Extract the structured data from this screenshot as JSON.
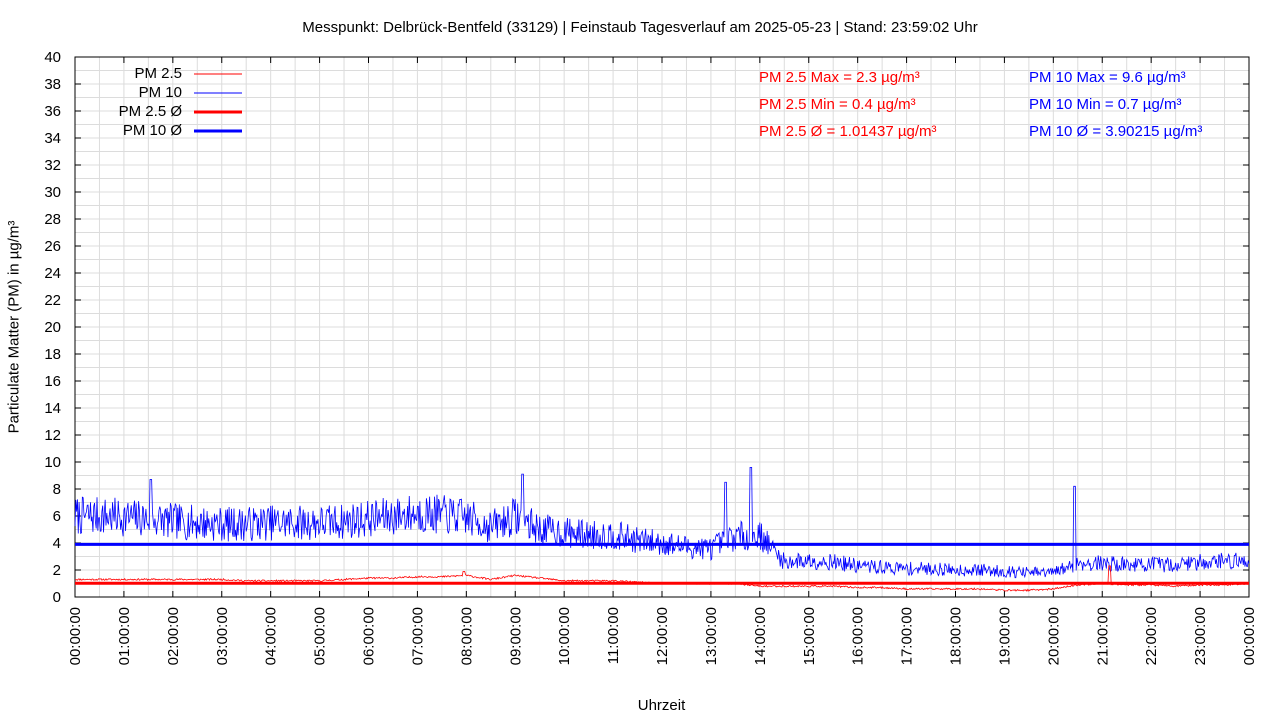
{
  "title": "Messpunkt: Delbrück-Bentfeld (33129) | Feinstaub Tagesverlauf am 2025-05-23 | Stand: 23:59:02 Uhr",
  "colors": {
    "pm25": "#ff0000",
    "pm10": "#0000ff",
    "grid": "#dcdcdc"
  },
  "stats": {
    "pm25_max": "PM 2.5 Max = 2.3 µg/m³",
    "pm25_min": "PM 2.5 Min = 0.4 µg/m³",
    "pm25_avg": "PM 2.5 Ø = 1.01437 µg/m³",
    "pm10_max": "PM 10 Max = 9.6 µg/m³",
    "pm10_min": "PM 10 Min = 0.7 µg/m³",
    "pm10_avg": "PM 10 Ø = 3.90215 µg/m³"
  },
  "chart_data": {
    "type": "line",
    "title": "Messpunkt: Delbrück-Bentfeld (33129) | Feinstaub Tagesverlauf am 2025-05-23 | Stand: 23:59:02 Uhr",
    "xlabel": "Uhrzeit",
    "ylabel": "Particulate Matter (PM) in µg/m³",
    "xlim": [
      "00:00:00",
      "24:00:00"
    ],
    "ylim": [
      0,
      40
    ],
    "grid": true,
    "legend_position": "top-left",
    "x_ticks": [
      "00:00:00",
      "01:00:00",
      "02:00:00",
      "03:00:00",
      "04:00:00",
      "05:00:00",
      "06:00:00",
      "07:00:00",
      "08:00:00",
      "09:00:00",
      "10:00:00",
      "11:00:00",
      "12:00:00",
      "13:00:00",
      "14:00:00",
      "15:00:00",
      "16:00:00",
      "17:00:00",
      "18:00:00",
      "19:00:00",
      "20:00:00",
      "21:00:00",
      "22:00:00",
      "23:00:00",
      "00:00:00"
    ],
    "y_ticks": [
      "0",
      "2",
      "4",
      "6",
      "8",
      "10",
      "12",
      "14",
      "16",
      "18",
      "20",
      "22",
      "24",
      "26",
      "28",
      "30",
      "32",
      "34",
      "36",
      "38",
      "40"
    ],
    "x_hours": [
      0,
      0.5,
      1,
      1.5,
      2,
      2.5,
      3,
      3.5,
      4,
      4.5,
      5,
      5.5,
      6,
      6.5,
      7,
      7.5,
      8,
      8.5,
      9,
      9.5,
      10,
      10.5,
      11,
      11.5,
      12,
      12.5,
      13,
      13.5,
      14,
      14.5,
      15,
      15.5,
      16,
      16.5,
      17,
      17.5,
      18,
      18.5,
      19,
      19.5,
      20,
      20.5,
      21,
      21.5,
      22,
      22.5,
      23,
      23.5,
      24
    ],
    "series": [
      {
        "name": "PM 2.5",
        "kind": "line",
        "values": [
          1.3,
          1.3,
          1.3,
          1.3,
          1.3,
          1.3,
          1.3,
          1.2,
          1.2,
          1.2,
          1.2,
          1.3,
          1.4,
          1.4,
          1.5,
          1.5,
          1.6,
          1.3,
          1.6,
          1.4,
          1.2,
          1.2,
          1.2,
          1.1,
          1.0,
          1.0,
          1.0,
          1.0,
          0.8,
          0.8,
          0.8,
          0.8,
          0.7,
          0.7,
          0.6,
          0.6,
          0.6,
          0.6,
          0.5,
          0.5,
          0.6,
          0.9,
          1.0,
          0.9,
          0.9,
          0.8,
          0.9,
          0.9,
          1.0
        ]
      },
      {
        "name": "PM 10",
        "kind": "line",
        "values": [
          6.0,
          6.0,
          5.9,
          5.8,
          5.6,
          5.5,
          5.4,
          5.4,
          5.5,
          5.5,
          5.5,
          5.6,
          5.8,
          6.0,
          6.2,
          6.1,
          5.9,
          5.2,
          6.0,
          5.0,
          4.8,
          4.6,
          4.6,
          4.2,
          4.0,
          3.7,
          3.6,
          4.5,
          4.6,
          2.6,
          2.7,
          2.6,
          2.3,
          2.2,
          2.1,
          2.1,
          2.0,
          2.0,
          1.9,
          1.8,
          1.8,
          2.5,
          2.5,
          2.4,
          2.4,
          2.4,
          2.6,
          2.7,
          2.6
        ]
      },
      {
        "name": "PM 2.5 Ø",
        "kind": "mean",
        "values": [
          1.01437
        ]
      },
      {
        "name": "PM 10 Ø",
        "kind": "mean",
        "values": [
          3.90215
        ]
      }
    ]
  }
}
